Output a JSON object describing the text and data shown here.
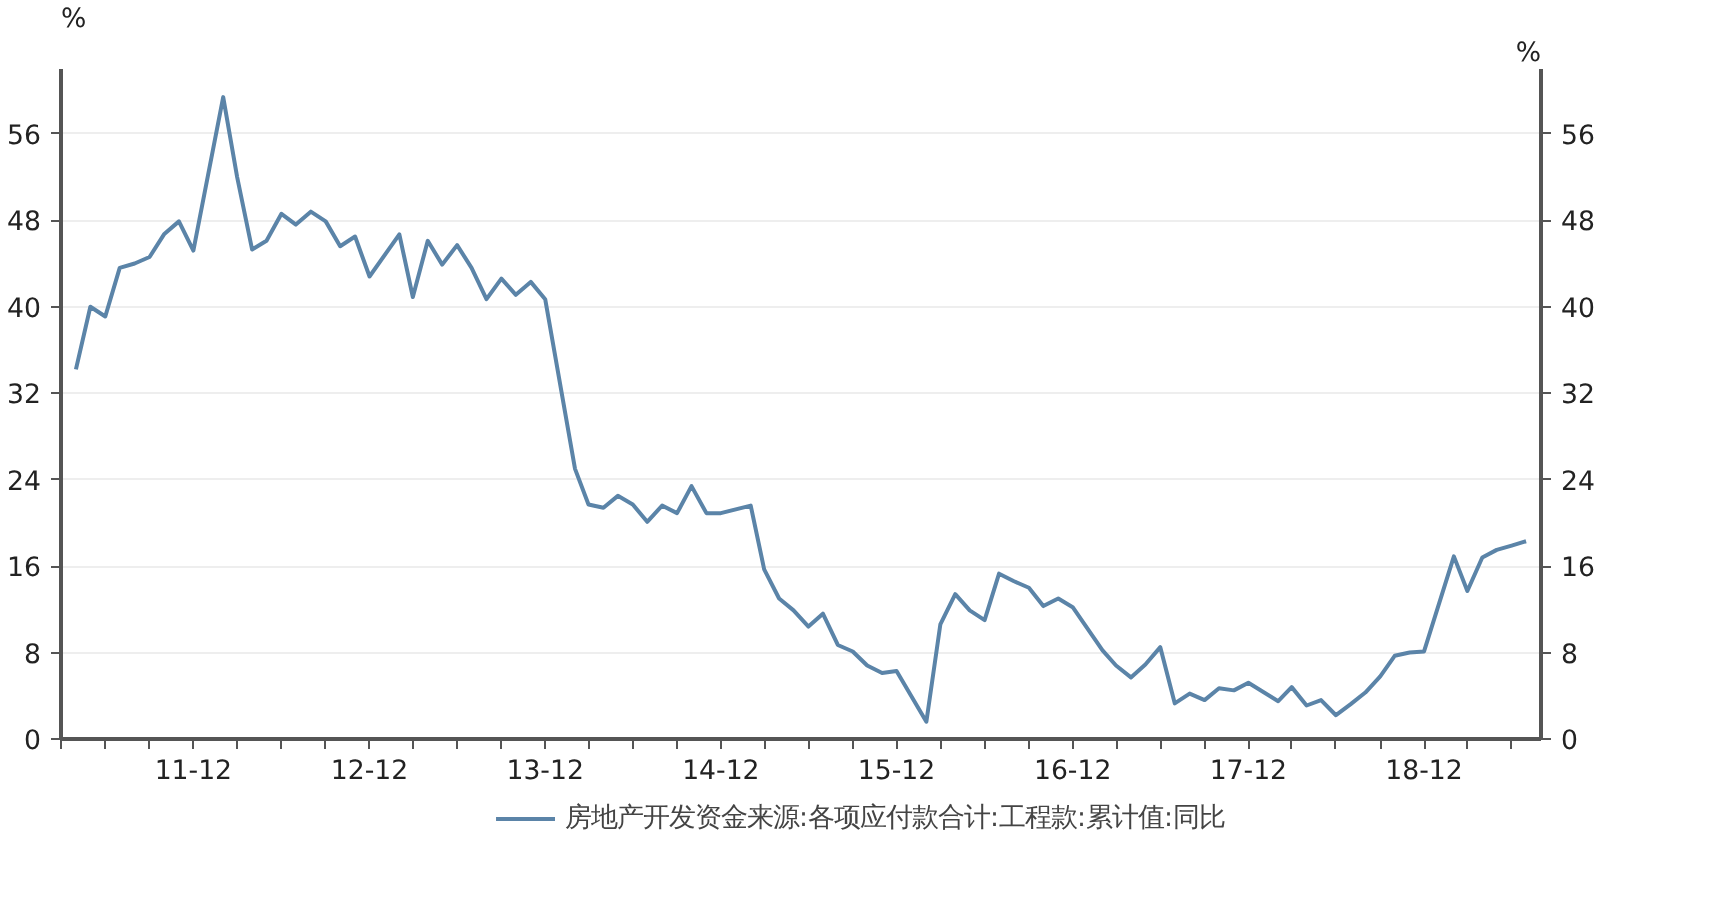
{
  "chart_data": {
    "type": "line",
    "ylabel": "%",
    "y2label": "%",
    "x": [
      "2011-04",
      "2011-05",
      "2011-06",
      "2011-07",
      "2011-08",
      "2011-09",
      "2011-10",
      "2011-11",
      "2011-12",
      "2012-02",
      "2012-03",
      "2012-04",
      "2012-05",
      "2012-06",
      "2012-07",
      "2012-08",
      "2012-09",
      "2012-10",
      "2012-11",
      "2012-12",
      "2013-02",
      "2013-03",
      "2013-04",
      "2013-05",
      "2013-06",
      "2013-07",
      "2013-08",
      "2013-09",
      "2013-10",
      "2013-11",
      "2013-12",
      "2014-02",
      "2014-03",
      "2014-04",
      "2014-05",
      "2014-06",
      "2014-07",
      "2014-08",
      "2014-09",
      "2014-10",
      "2014-11",
      "2014-12",
      "2015-02",
      "2015-03",
      "2015-04",
      "2015-05",
      "2015-06",
      "2015-07",
      "2015-08",
      "2015-09",
      "2015-10",
      "2015-11",
      "2015-12",
      "2016-02",
      "2016-03",
      "2016-04",
      "2016-05",
      "2016-06",
      "2016-07",
      "2016-08",
      "2016-09",
      "2016-10",
      "2016-11",
      "2016-12",
      "2017-02",
      "2017-03",
      "2017-04",
      "2017-05",
      "2017-06",
      "2017-07",
      "2017-08",
      "2017-09",
      "2017-10",
      "2017-11",
      "2017-12",
      "2018-02",
      "2018-03",
      "2018-04",
      "2018-05",
      "2018-06",
      "2018-07",
      "2018-08",
      "2018-09",
      "2018-10",
      "2018-11",
      "2018-12",
      "2019-02",
      "2019-03",
      "2019-04",
      "2019-05",
      "2019-06",
      "2019-07"
    ],
    "series": [
      {
        "name": "房地产开发资金来源:各项应付款合计:工程款:累计值:同比",
        "color": "#5b84a8",
        "values": [
          34.2,
          40.0,
          39.1,
          43.6,
          44.0,
          44.6,
          46.7,
          47.9,
          45.2,
          59.4,
          52.0,
          45.3,
          46.1,
          48.6,
          47.6,
          48.8,
          47.9,
          45.6,
          46.5,
          42.8,
          46.7,
          40.9,
          46.1,
          43.9,
          45.7,
          43.6,
          40.7,
          42.6,
          41.1,
          42.3,
          40.7,
          25.0,
          21.7,
          21.4,
          22.5,
          21.7,
          20.1,
          21.6,
          20.9,
          23.4,
          20.9,
          20.9,
          21.6,
          15.7,
          13.0,
          11.9,
          10.4,
          11.6,
          8.7,
          8.1,
          6.8,
          6.1,
          6.3,
          1.6,
          10.6,
          13.4,
          11.9,
          11.0,
          15.3,
          14.6,
          14.0,
          12.3,
          13.0,
          12.2,
          8.2,
          6.8,
          5.7,
          6.9,
          8.5,
          3.3,
          4.2,
          3.6,
          4.7,
          4.5,
          5.2,
          3.5,
          4.8,
          3.1,
          3.6,
          2.2,
          3.2,
          4.3,
          5.8,
          7.7,
          8.0,
          8.1,
          16.9,
          13.7,
          16.8,
          17.5,
          17.9,
          18.3
        ]
      }
    ],
    "xlim": [
      "2011-03",
      "2019-08"
    ],
    "xticks": [
      {
        "value": "2011-03",
        "label": null
      },
      {
        "value": "2011-06",
        "label": null
      },
      {
        "value": "2011-09",
        "label": null
      },
      {
        "value": "2011-12",
        "label": "11-12"
      },
      {
        "value": "2012-03",
        "label": null
      },
      {
        "value": "2012-06",
        "label": null
      },
      {
        "value": "2012-09",
        "label": null
      },
      {
        "value": "2012-12",
        "label": "12-12"
      },
      {
        "value": "2013-03",
        "label": null
      },
      {
        "value": "2013-06",
        "label": null
      },
      {
        "value": "2013-09",
        "label": null
      },
      {
        "value": "2013-12",
        "label": "13-12"
      },
      {
        "value": "2014-03",
        "label": null
      },
      {
        "value": "2014-06",
        "label": null
      },
      {
        "value": "2014-09",
        "label": null
      },
      {
        "value": "2014-12",
        "label": "14-12"
      },
      {
        "value": "2015-03",
        "label": null
      },
      {
        "value": "2015-06",
        "label": null
      },
      {
        "value": "2015-09",
        "label": null
      },
      {
        "value": "2015-12",
        "label": "15-12"
      },
      {
        "value": "2016-03",
        "label": null
      },
      {
        "value": "2016-06",
        "label": null
      },
      {
        "value": "2016-09",
        "label": null
      },
      {
        "value": "2016-12",
        "label": "16-12"
      },
      {
        "value": "2017-03",
        "label": null
      },
      {
        "value": "2017-06",
        "label": null
      },
      {
        "value": "2017-09",
        "label": null
      },
      {
        "value": "2017-12",
        "label": "17-12"
      },
      {
        "value": "2018-03",
        "label": null
      },
      {
        "value": "2018-06",
        "label": null
      },
      {
        "value": "2018-09",
        "label": null
      },
      {
        "value": "2018-12",
        "label": "18-12"
      },
      {
        "value": "2019-03",
        "label": null
      },
      {
        "value": "2019-06",
        "label": null
      }
    ],
    "ylim": [
      0,
      62
    ],
    "yticks": [
      0,
      8,
      16,
      24,
      32,
      40,
      48,
      56
    ],
    "y2lim": [
      0,
      62
    ],
    "y2ticks": [
      0,
      8,
      16,
      24,
      32,
      40,
      48,
      56
    ],
    "grid": "y",
    "legend": "bottom",
    "marker": "none",
    "line_style": "solid"
  }
}
